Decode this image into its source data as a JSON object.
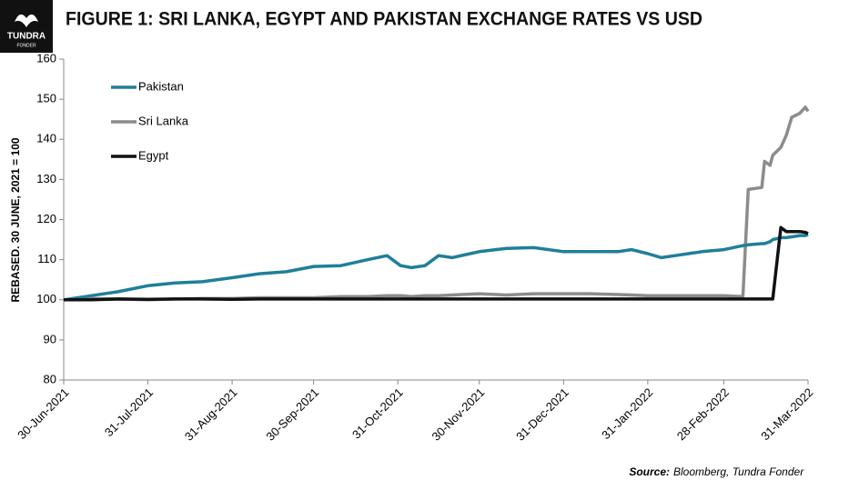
{
  "logo": {
    "name": "TUNDRA",
    "sub": "FONDER"
  },
  "chart_data": {
    "type": "line",
    "title": "FIGURE 1: SRI LANKA, EGYPT AND PAKISTAN EXCHANGE RATES VS USD",
    "y_label": "REBASED. 30 JUNE, 2021 = 100",
    "source_label": "Source:",
    "source": "Bloomberg, Tundra Fonder",
    "x": [
      "2021-06-30",
      "2021-07-10",
      "2021-07-20",
      "2021-07-31",
      "2021-08-10",
      "2021-08-20",
      "2021-08-31",
      "2021-09-10",
      "2021-09-20",
      "2021-09-30",
      "2021-10-10",
      "2021-10-20",
      "2021-10-27",
      "2021-11-01",
      "2021-11-05",
      "2021-11-10",
      "2021-11-15",
      "2021-11-20",
      "2021-11-30",
      "2021-12-10",
      "2021-12-20",
      "2021-12-31",
      "2022-01-10",
      "2022-01-20",
      "2022-01-25",
      "2022-01-31",
      "2022-02-05",
      "2022-02-10",
      "2022-02-20",
      "2022-02-28",
      "2022-03-07",
      "2022-03-09",
      "2022-03-14",
      "2022-03-15",
      "2022-03-17",
      "2022-03-18",
      "2022-03-21",
      "2022-03-23",
      "2022-03-25",
      "2022-03-28",
      "2022-03-30",
      "2022-03-31"
    ],
    "xlim": [
      "2021-06-30",
      "2022-03-31"
    ],
    "xticks": [
      {
        "value": "2021-06-30",
        "label": "30-Jun-2021"
      },
      {
        "value": "2021-07-31",
        "label": "31-Jul-2021"
      },
      {
        "value": "2021-08-31",
        "label": "31-Aug-2021"
      },
      {
        "value": "2021-09-30",
        "label": "30-Sep-2021"
      },
      {
        "value": "2021-10-31",
        "label": "31-Oct-2021"
      },
      {
        "value": "2021-11-30",
        "label": "30-Nov-2021"
      },
      {
        "value": "2021-12-31",
        "label": "31-Dec-2021"
      },
      {
        "value": "2022-01-31",
        "label": "31-Jan-2022"
      },
      {
        "value": "2022-02-28",
        "label": "28-Feb-2022"
      },
      {
        "value": "2022-03-31",
        "label": "31-Mar-2022"
      }
    ],
    "ylim": [
      80,
      160
    ],
    "yticks": [
      80,
      90,
      100,
      110,
      120,
      130,
      140,
      150,
      160
    ],
    "series": [
      {
        "name": "Pakistan",
        "color": "#1f7f9a",
        "values": [
          100,
          101,
          102,
          103.5,
          104.2,
          104.5,
          105.5,
          106.5,
          107,
          108.3,
          108.5,
          110,
          111,
          108.5,
          108,
          108.5,
          111,
          110.5,
          112,
          112.8,
          113,
          112,
          112,
          112,
          112.5,
          111.5,
          110.5,
          111,
          112,
          112.5,
          113.5,
          113.7,
          114,
          114,
          114.5,
          115,
          115.5,
          115.5,
          115.7,
          116,
          116,
          116.3
        ]
      },
      {
        "name": "Sri Lanka",
        "color": "#8c8c8c",
        "values": [
          100,
          100.3,
          100.2,
          100,
          100.2,
          100.3,
          100.3,
          100.5,
          100.5,
          100.5,
          100.8,
          100.8,
          101,
          101,
          100.8,
          101,
          101,
          101.2,
          101.5,
          101.2,
          101.5,
          101.5,
          101.5,
          101.3,
          101.2,
          101,
          101,
          101,
          101,
          101,
          100.8,
          127.5,
          128,
          134.5,
          133.5,
          136,
          138,
          141,
          145.5,
          146.5,
          148,
          147
        ]
      },
      {
        "name": "Egypt",
        "color": "#111111",
        "values": [
          100,
          100,
          100.2,
          100.1,
          100.2,
          100.2,
          100.1,
          100.2,
          100.2,
          100.2,
          100.2,
          100.2,
          100.2,
          100.2,
          100.2,
          100.2,
          100.2,
          100.2,
          100.2,
          100.2,
          100.2,
          100.2,
          100.2,
          100.2,
          100.2,
          100.2,
          100.2,
          100.2,
          100.2,
          100.2,
          100.2,
          100.2,
          100.2,
          100.2,
          100.2,
          100.2,
          118,
          117,
          117,
          117,
          116.8,
          116.5
        ]
      }
    ]
  }
}
